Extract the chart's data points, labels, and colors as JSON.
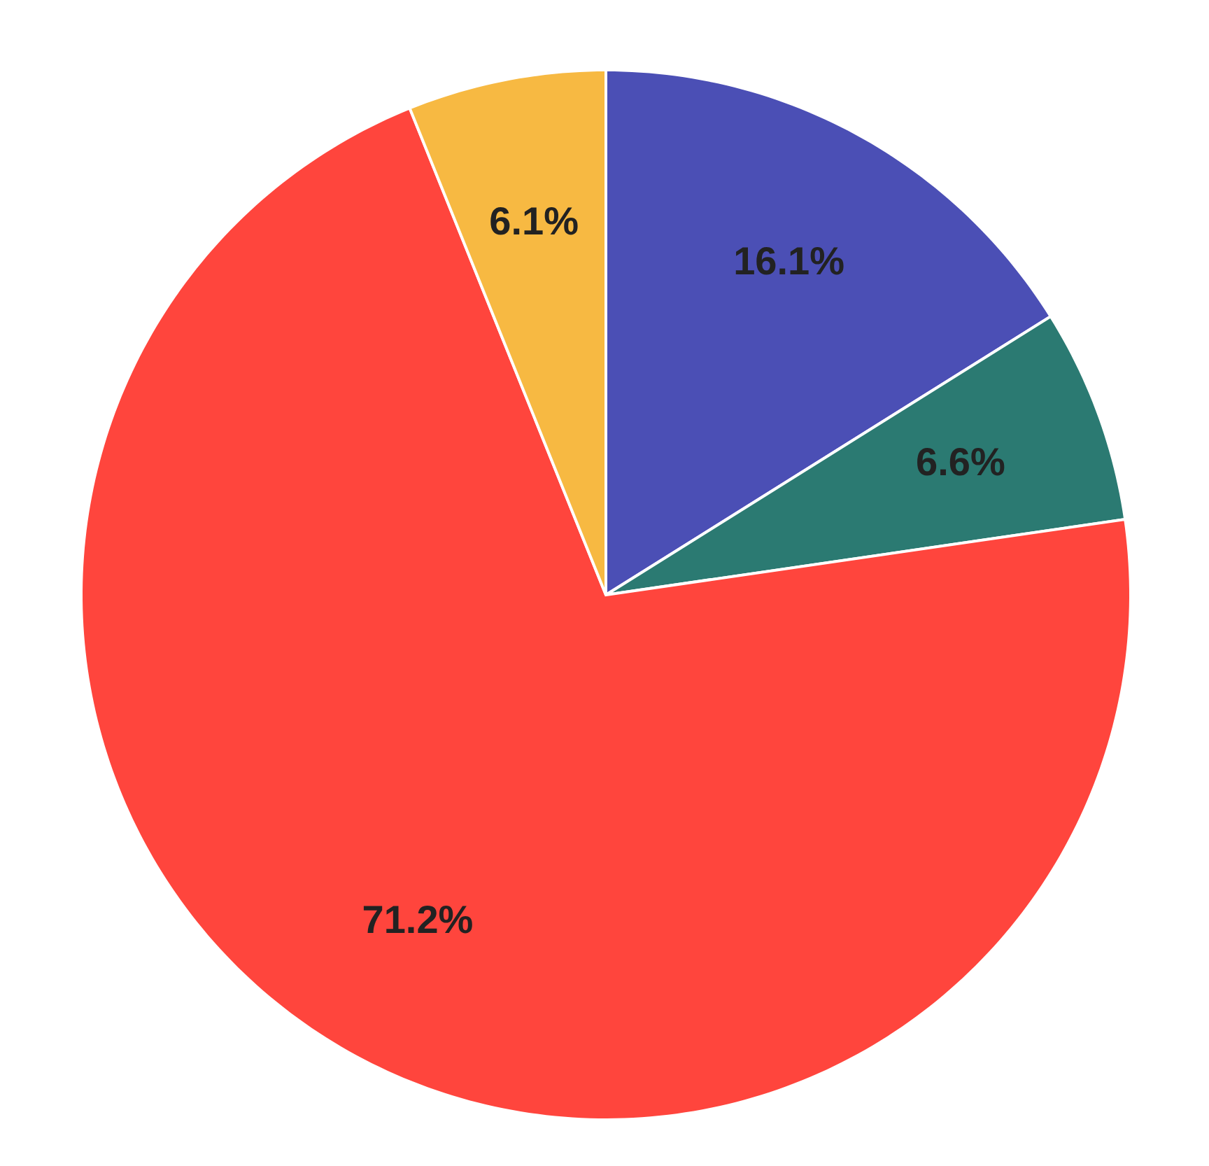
{
  "chart_data": {
    "type": "pie",
    "categories": [
      null,
      null,
      null,
      null
    ],
    "values": [
      16.1,
      6.6,
      71.2,
      6.1
    ],
    "colors": [
      "#4b4fb5",
      "#2b7a72",
      "#ff453d",
      "#f7b942"
    ],
    "value_labels": [
      "16.1%",
      "6.6%",
      "71.2%",
      "6.1%"
    ]
  }
}
